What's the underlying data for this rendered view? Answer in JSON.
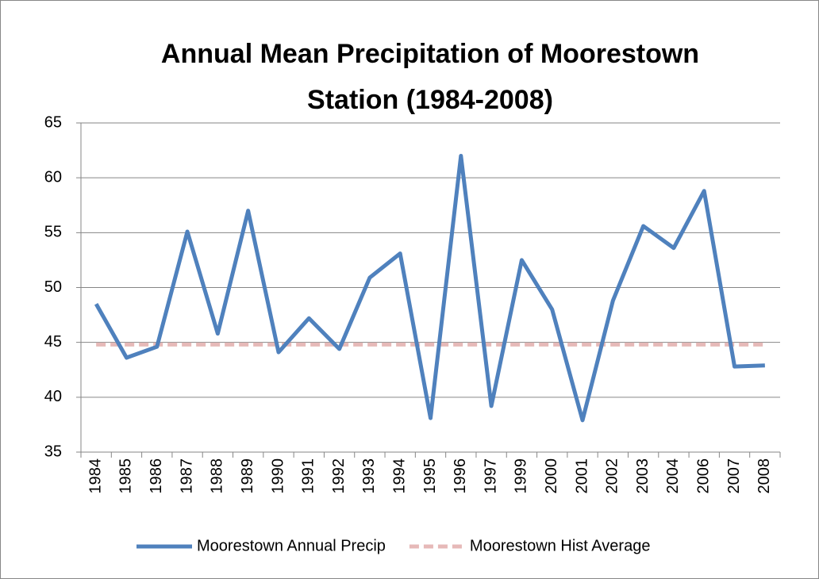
{
  "chart_data": {
    "type": "line",
    "title": [
      "Annual Mean Precipitation of Moorestown",
      "Station (1984-2008)"
    ],
    "categories": [
      "1984",
      "1985",
      "1986",
      "1987",
      "1988",
      "1989",
      "1990",
      "1991",
      "1992",
      "1993",
      "1994",
      "1995",
      "1996",
      "1997",
      "1999",
      "2000",
      "2001",
      "2002",
      "2003",
      "2004",
      "2006",
      "2007",
      "2008"
    ],
    "series": [
      {
        "name": "Moorestown Annual Precip",
        "color": "#4f81bd",
        "line_style": "solid",
        "values": [
          48.5,
          43.6,
          44.6,
          55.1,
          45.8,
          57.0,
          44.1,
          47.2,
          44.4,
          50.9,
          53.1,
          38.1,
          62.0,
          39.2,
          52.5,
          48.0,
          37.9,
          48.8,
          55.6,
          53.6,
          58.8,
          42.8,
          42.9
        ]
      },
      {
        "name": "Moorestown Hist Average",
        "color": "#e6b9b8",
        "line_style": "dashed",
        "values": [
          44.8,
          44.8,
          44.8,
          44.8,
          44.8,
          44.8,
          44.8,
          44.8,
          44.8,
          44.8,
          44.8,
          44.8,
          44.8,
          44.8,
          44.8,
          44.8,
          44.8,
          44.8,
          44.8,
          44.8,
          44.8,
          44.8,
          44.8
        ]
      }
    ],
    "ylim": [
      35,
      65
    ],
    "yticks": [
      35,
      40,
      45,
      50,
      55,
      60,
      65
    ],
    "grid": true,
    "legend": "bottom"
  }
}
